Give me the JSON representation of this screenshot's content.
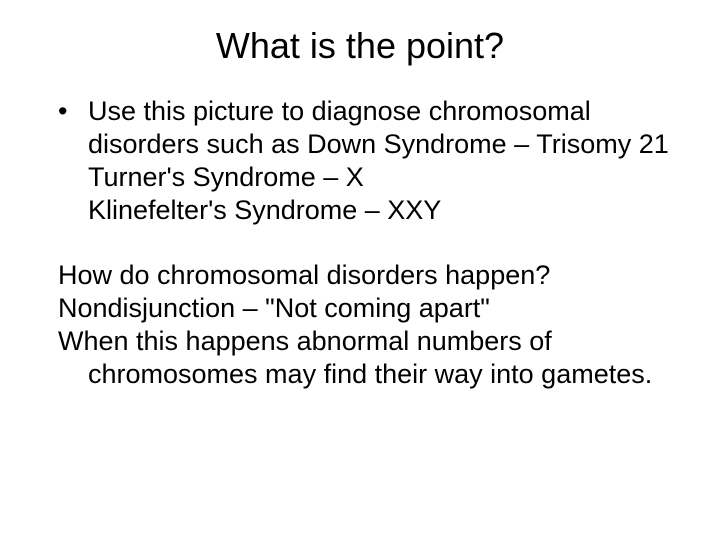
{
  "title": "What is the point?",
  "bullet": {
    "line1": "Use this picture to diagnose chromosomal disorders such as Down Syndrome – Trisomy 21",
    "line2": "Turner's Syndrome – X",
    "line3": "Klinefelter's Syndrome – XXY"
  },
  "body": {
    "line1": "How do chromosomal disorders happen?",
    "line2": "Nondisjunction – \"Not coming apart\"",
    "line3": "When this happens abnormal numbers of chromosomes may find their way into gametes."
  },
  "styling": {
    "background_color": "#ffffff",
    "text_color": "#000000",
    "title_fontsize": 36,
    "body_fontsize": 27,
    "font_family": "Arial"
  }
}
